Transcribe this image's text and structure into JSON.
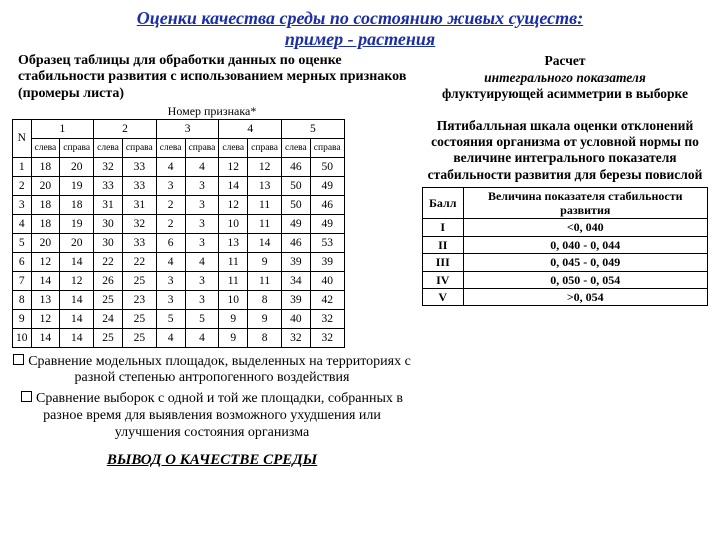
{
  "title_color": "#1a2ea8",
  "title_line1": "Оценки качества среды по состоянию живых существ:",
  "title_line2": "пример - растения",
  "subtitle": "Образец таблицы для обработки данных по оценке стабильности развития с использованием мерных признаков (промеры листа)",
  "table_caption": "Номер признака*",
  "main_table": {
    "n_header": "N",
    "group_headers": [
      "1",
      "2",
      "3",
      "4",
      "5"
    ],
    "sub_headers": [
      "слева",
      "справа",
      "слева",
      "справа",
      "слева",
      "справа",
      "слева",
      "справа",
      "слева",
      "справа"
    ],
    "rows": [
      [
        "1",
        "18",
        "20",
        "32",
        "33",
        "4",
        "4",
        "12",
        "12",
        "46",
        "50"
      ],
      [
        "2",
        "20",
        "19",
        "33",
        "33",
        "3",
        "3",
        "14",
        "13",
        "50",
        "49"
      ],
      [
        "3",
        "18",
        "18",
        "31",
        "31",
        "2",
        "3",
        "12",
        "11",
        "50",
        "46"
      ],
      [
        "4",
        "18",
        "19",
        "30",
        "32",
        "2",
        "3",
        "10",
        "11",
        "49",
        "49"
      ],
      [
        "5",
        "20",
        "20",
        "30",
        "33",
        "6",
        "3",
        "13",
        "14",
        "46",
        "53"
      ],
      [
        "6",
        "12",
        "14",
        "22",
        "22",
        "4",
        "4",
        "11",
        "9",
        "39",
        "39"
      ],
      [
        "7",
        "14",
        "12",
        "26",
        "25",
        "3",
        "3",
        "11",
        "11",
        "34",
        "40"
      ],
      [
        "8",
        "13",
        "14",
        "25",
        "23",
        "3",
        "3",
        "10",
        "8",
        "39",
        "42"
      ],
      [
        "9",
        "12",
        "14",
        "24",
        "25",
        "5",
        "5",
        "9",
        "9",
        "40",
        "32"
      ],
      [
        "10",
        "14",
        "14",
        "25",
        "25",
        "4",
        "4",
        "9",
        "8",
        "32",
        "32"
      ]
    ]
  },
  "right_block": {
    "calc_word": "Расчет",
    "integral_words": "интегрального показателя",
    "fluct_line": "флуктуирующей асимметрии в выборке",
    "scale_text": "Пятибалльная шкала оценки отклонений состояния организма от условной нормы по величине интегрального показателя стабильности развития для березы повислой"
  },
  "scale_table": {
    "col1": "Балл",
    "col2": "Величина показателя стабильности развития",
    "rows": [
      [
        "I",
        "<0, 040"
      ],
      [
        "II",
        "0, 040 - 0, 044"
      ],
      [
        "III",
        "0, 045 - 0, 049"
      ],
      [
        "IV",
        "0, 050 - 0, 054"
      ],
      [
        "V",
        ">0, 054"
      ]
    ]
  },
  "bullet1": "Сравнение модельных площадок, выделенных на территориях с разной степенью антропогенного воздействия",
  "bullet2": "Сравнение выборок с одной и той же площадки, собранных в разное время для выявления возможного ухудшения или улучшения состояния организма",
  "conclusion": "ВЫВОД О КАЧЕСТВЕ СРЕДЫ"
}
